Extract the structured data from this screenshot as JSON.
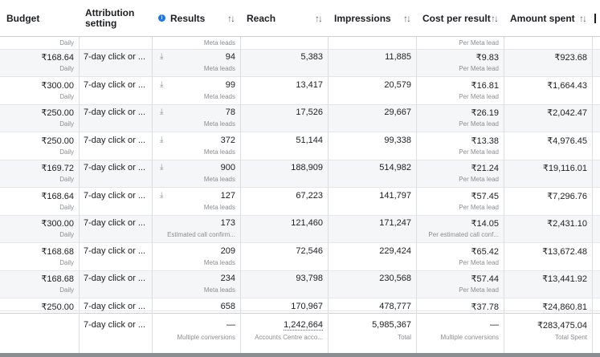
{
  "columns": {
    "budget": "Budget",
    "attribution": "Attribution setting",
    "results": "Results",
    "reach": "Reach",
    "impressions": "Impressions",
    "cost_per_result": "Cost per result",
    "amount_spent": "Amount spent",
    "sort_glyph": "↑↓"
  },
  "partial_row": {
    "budget_sub": "Daily",
    "results_sub": "Meta leads",
    "cpr_sub": "Per Meta lead"
  },
  "rows": [
    {
      "budget": "₹168.64",
      "budget_sub": "Daily",
      "attribution": "7-day click or ...",
      "results": "94",
      "results_sub": "Meta leads",
      "reach": "5,383",
      "impressions": "11,885",
      "cpr": "₹9.83",
      "cpr_sub": "Per Meta lead",
      "spent": "₹923.68"
    },
    {
      "budget": "₹300.00",
      "budget_sub": "Daily",
      "attribution": "7-day click or ...",
      "results": "99",
      "results_sub": "Meta leads",
      "reach": "13,417",
      "impressions": "20,579",
      "cpr": "₹16.81",
      "cpr_sub": "Per Meta lead",
      "spent": "₹1,664.43"
    },
    {
      "budget": "₹250.00",
      "budget_sub": "Daily",
      "attribution": "7-day click or ...",
      "results": "78",
      "results_sub": "Meta leads",
      "reach": "17,526",
      "impressions": "29,667",
      "cpr": "₹26.19",
      "cpr_sub": "Per Meta lead",
      "spent": "₹2,042.47"
    },
    {
      "budget": "₹250.00",
      "budget_sub": "Daily",
      "attribution": "7-day click or ...",
      "results": "372",
      "results_sub": "Meta leads",
      "reach": "51,144",
      "impressions": "99,338",
      "cpr": "₹13.38",
      "cpr_sub": "Per Meta lead",
      "spent": "₹4,976.45"
    },
    {
      "budget": "₹169.72",
      "budget_sub": "Daily",
      "attribution": "7-day click or ...",
      "results": "900",
      "results_sub": "Meta leads",
      "reach": "188,909",
      "impressions": "514,982",
      "cpr": "₹21.24",
      "cpr_sub": "Per Meta lead",
      "spent": "₹19,116.01"
    },
    {
      "budget": "₹168.64",
      "budget_sub": "Daily",
      "attribution": "7-day click or ...",
      "results": "127",
      "results_sub": "Meta leads",
      "reach": "67,223",
      "impressions": "141,797",
      "cpr": "₹57.45",
      "cpr_sub": "Per Meta lead",
      "spent": "₹7,296.76"
    },
    {
      "budget": "₹300.00",
      "budget_sub": "Daily",
      "attribution": "7-day click or ...",
      "results": "173",
      "results_sub": "Estimated call confirm...",
      "reach": "121,460",
      "impressions": "171,247",
      "cpr": "₹14.05",
      "cpr_sub": "Per estimated call conf...",
      "spent": "₹2,431.10"
    },
    {
      "budget": "₹168.68",
      "budget_sub": "Daily",
      "attribution": "7-day click or ...",
      "results": "209",
      "results_sub": "Meta leads",
      "reach": "72,546",
      "impressions": "229,424",
      "cpr": "₹65.42",
      "cpr_sub": "Per Meta lead",
      "spent": "₹13,672.48"
    },
    {
      "budget": "₹168.68",
      "budget_sub": "Daily",
      "attribution": "7-day click or ...",
      "results": "234",
      "results_sub": "Meta leads",
      "reach": "93,798",
      "impressions": "230,568",
      "cpr": "₹57.44",
      "cpr_sub": "Per Meta lead",
      "spent": "₹13,441.92"
    },
    {
      "budget": "₹250.00",
      "budget_sub": "",
      "attribution": "7-day click or ...",
      "results": "658",
      "results_sub": "",
      "reach": "170,967",
      "impressions": "478,777",
      "cpr": "₹37.78",
      "cpr_sub": "",
      "spent": "₹24,860.81"
    }
  ],
  "download_icon_rows": [
    true,
    true,
    true,
    true,
    true,
    true,
    false,
    false,
    false,
    false
  ],
  "totals": {
    "attribution": "7-day click or ...",
    "results": "—",
    "results_sub": "Multiple conversions",
    "reach": "1,242,664",
    "reach_sub": "Accounts Centre acco...",
    "impressions": "5,985,367",
    "impressions_sub": "Total",
    "cpr": "—",
    "cpr_sub": "Multiple conversions",
    "spent": "₹283,475.04",
    "spent_sub": "Total Spent"
  },
  "icons": {
    "info": "info-icon",
    "download": "download-icon",
    "sort": "sort-icon"
  },
  "colors": {
    "info_blue": "#1877f2",
    "row_alt": "#f5f6f7",
    "muted_text": "#8a8d91",
    "border": "#dadde1"
  }
}
